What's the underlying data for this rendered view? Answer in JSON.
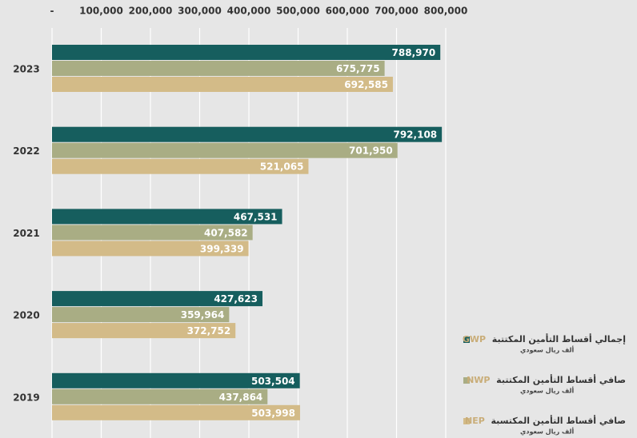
{
  "chart_data": {
    "type": "barh",
    "categories": [
      "2023",
      "2022",
      "2021",
      "2020",
      "2019"
    ],
    "series": [
      {
        "name": "GWP",
        "label": "إجمالي أقساط التأمين المكتتبة",
        "unit": "ألف ريال سعودي",
        "color": "#165e5e",
        "values": [
          788970,
          792108,
          467531,
          427623,
          503504
        ],
        "value_labels": [
          "788,970",
          "792,108",
          "467,531",
          "427,623",
          "503,504"
        ]
      },
      {
        "name": "NWP",
        "label": "صافي أقساط التأمين المكتتبة",
        "unit": "ألف ريال سعودي",
        "color": "#a9ad84",
        "values": [
          675775,
          701950,
          407582,
          359964,
          437864
        ],
        "value_labels": [
          "675,775",
          "701,950",
          "407,582",
          "359,964",
          "437,864"
        ]
      },
      {
        "name": "NEP",
        "label": "صافي أقساط التأمين المكتسبة",
        "unit": "ألف ريال سعودي",
        "color": "#d3bb88",
        "values": [
          692585,
          521065,
          399339,
          372752,
          503998
        ],
        "value_labels": [
          "692,585",
          "521,065",
          "399,339",
          "372,752",
          "503,998"
        ]
      }
    ],
    "xlim": [
      0,
      800000
    ],
    "xticks": [
      {
        "value": 0,
        "label": "-"
      },
      {
        "value": 100000,
        "label": "100,000"
      },
      {
        "value": 200000,
        "label": "200,000"
      },
      {
        "value": 300000,
        "label": "300,000"
      },
      {
        "value": 400000,
        "label": "400,000"
      },
      {
        "value": 500000,
        "label": "500,000"
      },
      {
        "value": 600000,
        "label": "600,000"
      },
      {
        "value": 700000,
        "label": "700,000"
      },
      {
        "value": 800000,
        "label": "800,000"
      }
    ],
    "grid": true,
    "legend": "lower right"
  }
}
